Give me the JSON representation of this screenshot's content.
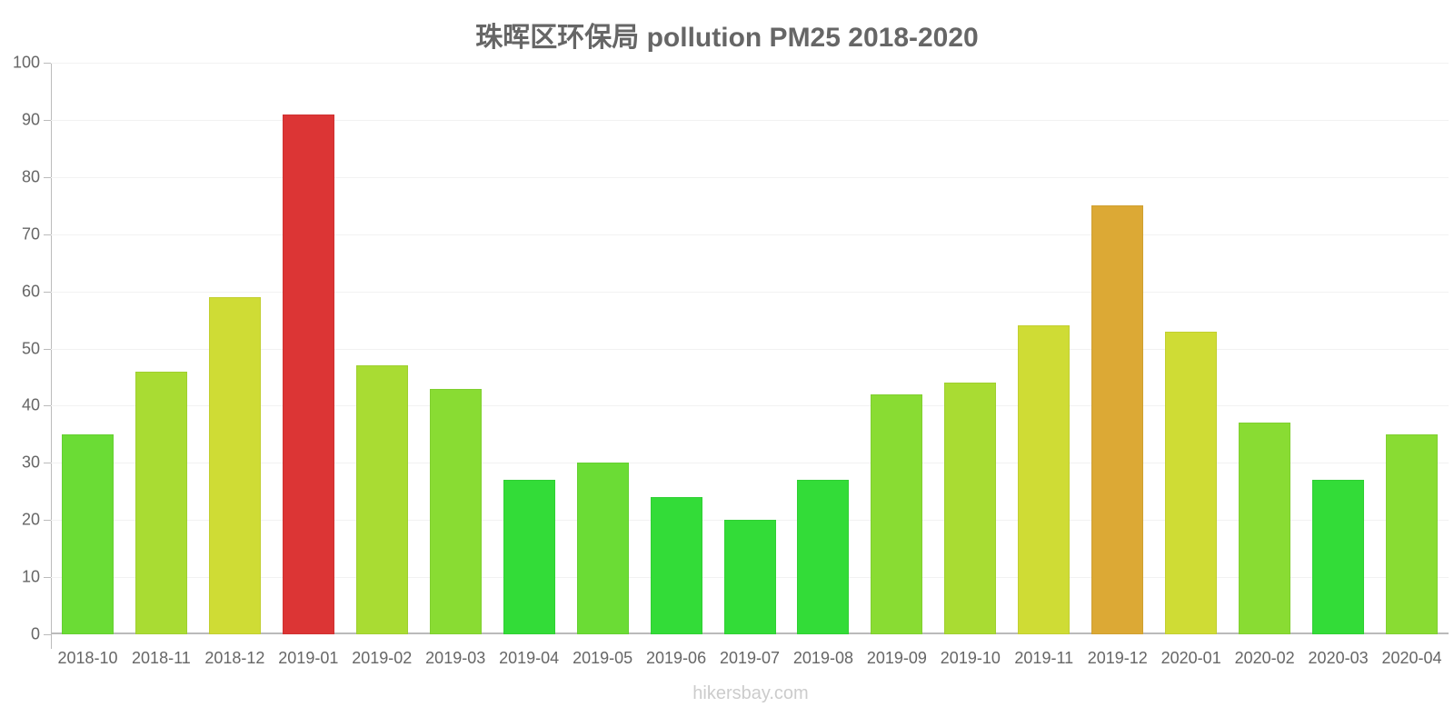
{
  "title": "珠晖区环保局 pollution PM25 2018-2020",
  "watermark": "hikersbay.com",
  "chart_data": {
    "type": "bar",
    "title": "珠晖区环保局 pollution PM25 2018-2020",
    "xlabel": "",
    "ylabel": "",
    "ylim": [
      0,
      100
    ],
    "yticks": [
      0,
      10,
      20,
      30,
      40,
      50,
      60,
      70,
      80,
      90,
      100
    ],
    "grid": true,
    "legend": null,
    "categories": [
      "2018-10",
      "2018-11",
      "2018-12",
      "2019-01",
      "2019-02",
      "2019-03",
      "2019-04",
      "2019-05",
      "2019-06",
      "2019-07",
      "2019-08",
      "2019-09",
      "2019-10",
      "2019-11",
      "2019-12",
      "2020-01",
      "2020-02",
      "2020-03",
      "2020-04"
    ],
    "values": [
      35,
      46,
      59,
      91,
      47,
      43,
      27,
      30,
      24,
      20,
      27,
      42,
      44,
      54,
      75,
      53,
      37,
      27,
      35
    ],
    "colors": [
      "#6bdc35",
      "#a9dc33",
      "#cfdc35",
      "#dc3535",
      "#a9dc33",
      "#89dc33",
      "#33dc38",
      "#6bdc35",
      "#33dc38",
      "#33dc38",
      "#33dc38",
      "#89dc33",
      "#a9dc33",
      "#cfdc35",
      "#dca935",
      "#cfdc35",
      "#89dc33",
      "#33dc38",
      "#89dc33"
    ]
  }
}
